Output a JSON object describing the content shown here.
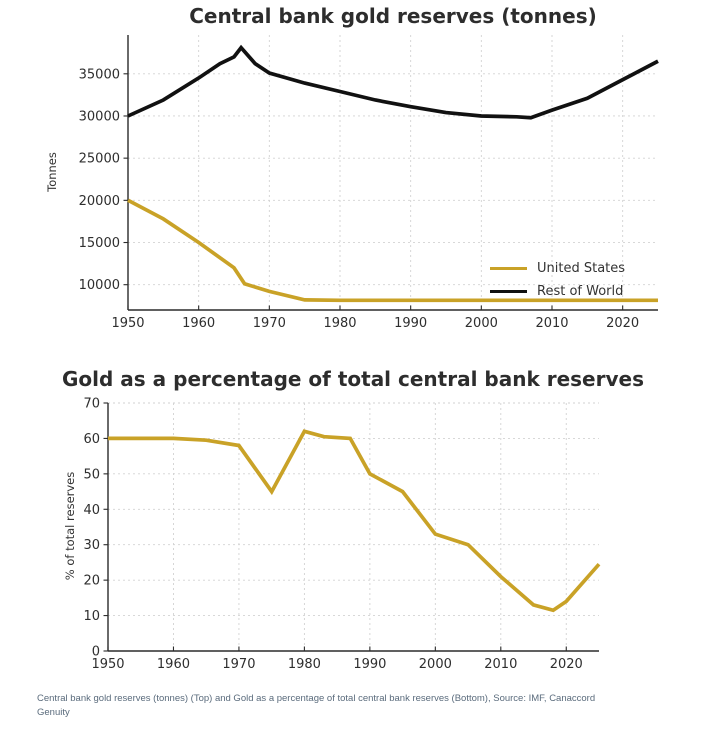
{
  "chart_data": [
    {
      "type": "line",
      "title": "Central bank gold reserves (tonnes)",
      "ylabel": "Tonnes",
      "xlabel": "",
      "grid": true,
      "legend_position": "lower right",
      "xlim": [
        1950,
        2025
      ],
      "ylim": [
        7000,
        39600
      ],
      "xticks": [
        1950,
        1960,
        1970,
        1980,
        1990,
        2000,
        2010,
        2020
      ],
      "yticks": [
        10000,
        15000,
        20000,
        25000,
        30000,
        35000
      ],
      "series": [
        {
          "name": "United States",
          "color": "#C9A227",
          "x": [
            1950,
            1955,
            1960,
            1965,
            1966.5,
            1970,
            1975,
            1980,
            1990,
            2000,
            2010,
            2020,
            2025
          ],
          "y": [
            20000,
            17800,
            15000,
            12000,
            10100,
            9200,
            8200,
            8150,
            8150,
            8150,
            8150,
            8150,
            8150
          ]
        },
        {
          "name": "Rest of World",
          "color": "#111111",
          "x": [
            1950,
            1955,
            1960,
            1963,
            1965,
            1966,
            1968,
            1970,
            1975,
            1980,
            1985,
            1990,
            1995,
            2000,
            2005,
            2007,
            2010,
            2015,
            2020,
            2025
          ],
          "y": [
            30000,
            31900,
            34500,
            36200,
            37000,
            38100,
            36200,
            35100,
            33900,
            32900,
            31900,
            31100,
            30400,
            30000,
            29900,
            29800,
            30700,
            32100,
            34300,
            36500
          ]
        }
      ]
    },
    {
      "type": "line",
      "title": "Gold as a percentage of total central bank reserves",
      "ylabel": "% of total reserves",
      "xlabel": "",
      "grid": true,
      "legend_position": "none",
      "xlim": [
        1950,
        2025
      ],
      "ylim": [
        0,
        70
      ],
      "xticks": [
        1950,
        1960,
        1970,
        1980,
        1990,
        2000,
        2010,
        2020
      ],
      "yticks": [
        0,
        10,
        20,
        30,
        40,
        50,
        60,
        70
      ],
      "series": [
        {
          "name": "United States",
          "color": "#C9A227",
          "x": [
            1950,
            1960,
            1965,
            1970,
            1975,
            1980,
            1983,
            1987,
            1990,
            1995,
            2000,
            2005,
            2010,
            2015,
            2018,
            2020,
            2025
          ],
          "y": [
            60,
            60,
            59.5,
            58,
            45,
            62,
            60.5,
            60,
            50,
            45,
            33,
            30,
            21,
            13,
            11.5,
            14,
            24.5
          ]
        }
      ]
    }
  ],
  "footer": {
    "caption": "Central bank gold reserves (tonnes) (Top) and Gold as a percentage of total central bank reserves (Bottom), Source: IMF, Canaccord Genuity"
  },
  "colors": {
    "gold": "#C9A227",
    "black": "#111111",
    "title_text": "#2d2d2d",
    "tick_text": "#2e2e2e",
    "grid": "#d2d2d2",
    "caption_text": "#5a6b7c",
    "background": "#ffffff"
  }
}
